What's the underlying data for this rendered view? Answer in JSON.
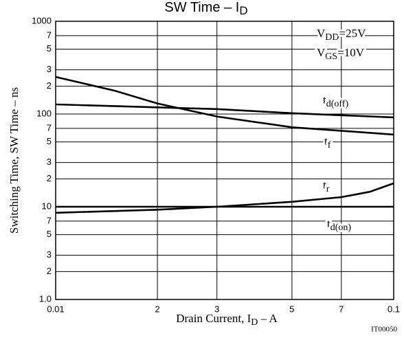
{
  "chart_data": {
    "type": "line",
    "title": [
      "SW Time  –  I",
      "D"
    ],
    "x_label": [
      "Drain Current, I",
      "D",
      "  –  A"
    ],
    "y_label": "Switching Time, SW Time  –  ns",
    "code": "IT00050",
    "annotations": [
      [
        "V",
        "DD",
        "=25V"
      ],
      [
        "V",
        "GS",
        "=10V"
      ]
    ],
    "log_x": true,
    "log_y": true,
    "grid": true,
    "xlim": [
      0.01,
      0.1
    ],
    "ylim": [
      1,
      1000
    ],
    "xticks": [
      0.01,
      {
        "value": 0.02,
        "label": "2"
      },
      {
        "value": 0.03,
        "label": "3"
      },
      {
        "value": 0.05,
        "label": "5"
      },
      {
        "value": 0.07,
        "label": "7"
      },
      0.1
    ],
    "yticks": [
      {
        "value": 1,
        "label": "1.0"
      },
      2,
      3,
      5,
      7,
      10,
      {
        "value": 20,
        "label": "2"
      },
      {
        "value": 30,
        "label": "3"
      },
      {
        "value": 50,
        "label": "5"
      },
      {
        "value": 70,
        "label": "7"
      },
      100,
      {
        "value": 200,
        "label": "2"
      },
      {
        "value": 300,
        "label": "3"
      },
      {
        "value": 500,
        "label": "5"
      },
      {
        "value": 700,
        "label": "7"
      },
      1000
    ],
    "series": [
      {
        "name": "td(off)",
        "color": "#000000",
        "x": [
          0.01,
          0.02,
          0.03,
          0.05,
          0.07,
          0.1
        ],
        "values": [
          127,
          118,
          113,
          102,
          97,
          92
        ]
      },
      {
        "name": "tf",
        "color": "#000000",
        "x": [
          0.01,
          0.015,
          0.02,
          0.03,
          0.05,
          0.07,
          0.1
        ],
        "values": [
          251,
          178,
          130,
          94,
          72,
          66,
          60
        ]
      },
      {
        "name": "tr",
        "color": "#000000",
        "x": [
          0.01,
          0.02,
          0.03,
          0.05,
          0.07,
          0.085,
          0.1
        ],
        "values": [
          8.6,
          9.3,
          10,
          11.3,
          12.7,
          14.5,
          17.9
        ]
      },
      {
        "name": "td(on)",
        "color": "#000000",
        "x": [
          0.01,
          0.03,
          0.1
        ],
        "values": [
          10,
          10,
          10
        ]
      }
    ]
  }
}
